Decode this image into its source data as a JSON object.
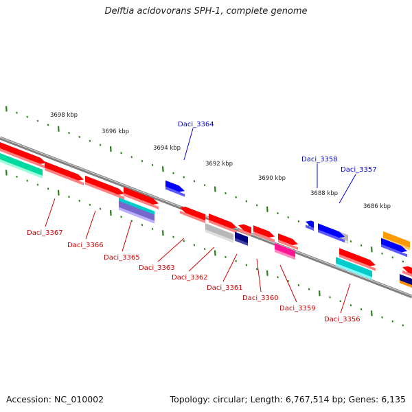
{
  "title": "Delftia acidovorans SPH-1, complete genome",
  "footer": {
    "accession": "Accession: NC_010002",
    "topology": "Topology: circular; Length: 6,767,514 bp; Genes: 6,135"
  },
  "scale_labels": [
    "3698 kbp",
    "3696 kbp",
    "3694 kbp",
    "3692 kbp",
    "3690 kbp",
    "3688 kbp",
    "3686 kbp"
  ],
  "gene_labels": {
    "forward": [
      "Daci_3364",
      "Daci_3358",
      "Daci_3357"
    ],
    "reverse": [
      "Daci_3367",
      "Daci_3366",
      "Daci_3365",
      "Daci_3363",
      "Daci_3362",
      "Daci_3361",
      "Daci_3360",
      "Daci_3359",
      "Daci_3356"
    ]
  },
  "colors": {
    "forward_label": "#0000cc",
    "reverse_label": "#cc0000",
    "scale_tick": "#2e7d1e",
    "backbone": "#808080"
  }
}
